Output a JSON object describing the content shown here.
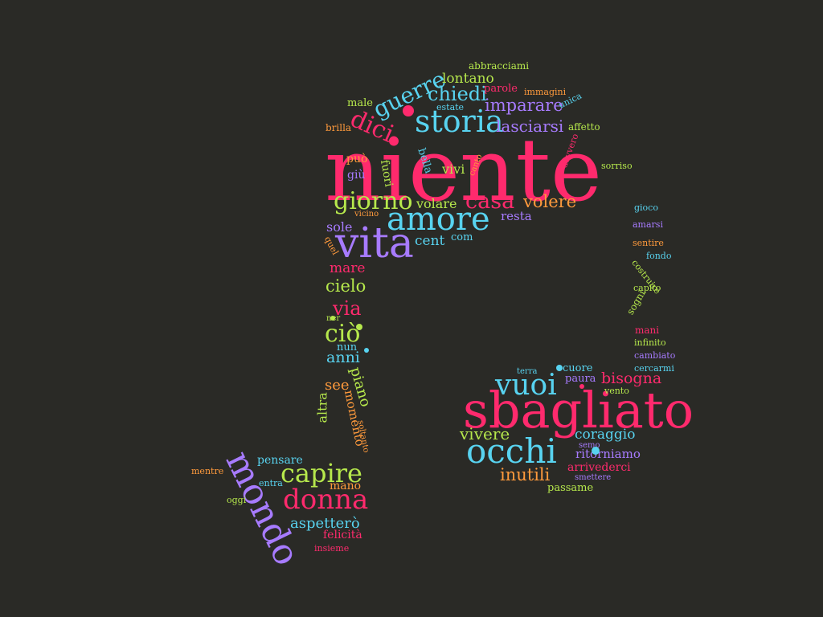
{
  "palette": {
    "background": "#2a2a26",
    "pink": "#ff2a6d",
    "purple": "#a77bff",
    "cyan": "#58d3f0",
    "green": "#b6e84c",
    "orange": "#ff9a3c"
  },
  "words": [
    {
      "t": "niente",
      "c": "pink"
    },
    {
      "t": "sbagliato",
      "c": "pink"
    },
    {
      "t": "vita",
      "c": "purple"
    },
    {
      "t": "amore",
      "c": "cyan"
    },
    {
      "t": "storia",
      "c": "cyan"
    },
    {
      "t": "occhi",
      "c": "cyan"
    },
    {
      "t": "mondo",
      "c": "purple"
    },
    {
      "t": "vuoi",
      "c": "cyan"
    },
    {
      "t": "giorno",
      "c": "green"
    },
    {
      "t": "capire",
      "c": "green"
    },
    {
      "t": "donna",
      "c": "pink"
    },
    {
      "t": "casa",
      "c": "pink"
    },
    {
      "t": "guerre",
      "c": "cyan"
    },
    {
      "t": "chiedi",
      "c": "cyan"
    },
    {
      "t": "dici",
      "c": "pink"
    },
    {
      "t": "ciò",
      "c": "green"
    },
    {
      "t": "via",
      "c": "pink"
    },
    {
      "t": "volere",
      "c": "orange"
    },
    {
      "t": "imparare",
      "c": "purple"
    },
    {
      "t": "lasciarsi",
      "c": "purple"
    },
    {
      "t": "inutili",
      "c": "orange"
    },
    {
      "t": "vivere",
      "c": "green"
    },
    {
      "t": "bisogna",
      "c": "pink"
    },
    {
      "t": "coraggio",
      "c": "cyan"
    },
    {
      "t": "cielo",
      "c": "green"
    },
    {
      "t": "piano",
      "c": "green"
    },
    {
      "t": "anni",
      "c": "cyan"
    },
    {
      "t": "lontano",
      "c": "green"
    },
    {
      "t": "volare",
      "c": "green"
    },
    {
      "t": "cent",
      "c": "cyan"
    },
    {
      "t": "aspetterò",
      "c": "cyan"
    },
    {
      "t": "resta",
      "c": "purple"
    },
    {
      "t": "sole",
      "c": "purple"
    },
    {
      "t": "mare",
      "c": "pink"
    },
    {
      "t": "momento",
      "c": "orange"
    },
    {
      "t": "see",
      "c": "orange"
    },
    {
      "t": "altra",
      "c": "green"
    },
    {
      "t": "vivi",
      "c": "green"
    },
    {
      "t": "ritorniamo",
      "c": "purple"
    },
    {
      "t": "arrivederci",
      "c": "pink"
    },
    {
      "t": "pensare",
      "c": "cyan"
    },
    {
      "t": "mano",
      "c": "orange"
    },
    {
      "t": "felicità",
      "c": "pink"
    },
    {
      "t": "passame",
      "c": "green"
    },
    {
      "t": "paura",
      "c": "purple"
    },
    {
      "t": "cuore",
      "c": "cyan"
    },
    {
      "t": "com",
      "c": "cyan"
    },
    {
      "t": "male",
      "c": "green"
    },
    {
      "t": "parole",
      "c": "pink"
    },
    {
      "t": "immagini",
      "c": "orange"
    },
    {
      "t": "abbracciami",
      "c": "green"
    },
    {
      "t": "estate",
      "c": "cyan"
    },
    {
      "t": "unica",
      "c": "cyan"
    },
    {
      "t": "brilla",
      "c": "orange"
    },
    {
      "t": "può",
      "c": "orange"
    },
    {
      "t": "giù",
      "c": "purple"
    },
    {
      "t": "fuori",
      "c": "green"
    },
    {
      "t": "bella",
      "c": "cyan"
    },
    {
      "t": "canto",
      "c": "orange"
    },
    {
      "t": "davvero",
      "c": "pink"
    },
    {
      "t": "affetto",
      "c": "green"
    },
    {
      "t": "sorriso",
      "c": "green"
    },
    {
      "t": "gioco",
      "c": "cyan"
    },
    {
      "t": "amarsi",
      "c": "purple"
    },
    {
      "t": "sentire",
      "c": "orange"
    },
    {
      "t": "fondo",
      "c": "cyan"
    },
    {
      "t": "costruire",
      "c": "green"
    },
    {
      "t": "capito",
      "c": "green"
    },
    {
      "t": "sogni",
      "c": "green"
    },
    {
      "t": "mani",
      "c": "pink"
    },
    {
      "t": "infinito",
      "c": "green"
    },
    {
      "t": "cambiato",
      "c": "purple"
    },
    {
      "t": "cercarmi",
      "c": "cyan"
    },
    {
      "t": "vento",
      "c": "green"
    },
    {
      "t": "terra",
      "c": "cyan"
    },
    {
      "t": "semo",
      "c": "purple"
    },
    {
      "t": "smettere",
      "c": "purple"
    },
    {
      "t": "vicino",
      "c": "orange"
    },
    {
      "t": "quel",
      "c": "orange"
    },
    {
      "t": "ner",
      "c": "green"
    },
    {
      "t": "nun",
      "c": "cyan"
    },
    {
      "t": "soltanto",
      "c": "orange"
    },
    {
      "t": "mentre",
      "c": "orange"
    },
    {
      "t": "entra",
      "c": "cyan"
    },
    {
      "t": "oggi",
      "c": "green"
    },
    {
      "t": "insieme",
      "c": "pink"
    }
  ]
}
